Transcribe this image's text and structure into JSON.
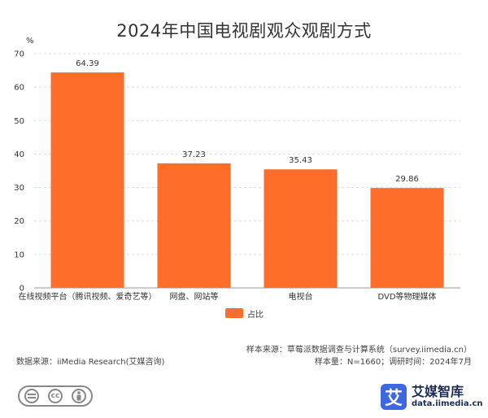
{
  "colors": {
    "bar": "#ff6d2b",
    "grid": "#dddddd",
    "axis": "#999999",
    "brand": "#3e67e2"
  },
  "chart_data": {
    "type": "bar",
    "title": "2024年中国电视剧观众观剧方式",
    "ylabel": "%",
    "xlabel": "",
    "ylim": [
      0,
      70
    ],
    "yticks": [
      0,
      10,
      20,
      30,
      40,
      50,
      60,
      70
    ],
    "categories": [
      "在线视频平台（腾讯视频、爱奇艺等）",
      "网盘、网站等",
      "电视台",
      "DVD等物理媒体"
    ],
    "series": [
      {
        "name": "占比",
        "values": [
          64.39,
          37.23,
          35.43,
          29.86
        ]
      }
    ],
    "data_labels": [
      "64.39",
      "37.23",
      "35.43",
      "29.86"
    ],
    "grid": true,
    "legend_position": "bottom-center"
  },
  "footer": {
    "sample_source": "样本来源：草莓派数据调查与计算系统（survey.iimedia.cn）",
    "sample_size": "样本量：N=1660；调研时间：2024年7月",
    "data_source": "数据来源：iiMedia Research(艾媒咨询)"
  },
  "license": {
    "icons": [
      "equals-icon",
      "cc-icon",
      "person-icon"
    ],
    "cc_text": "cc"
  },
  "brand": {
    "logo_char": "艾",
    "name": "艾媒智库",
    "url": "data.iimedia.cn"
  }
}
